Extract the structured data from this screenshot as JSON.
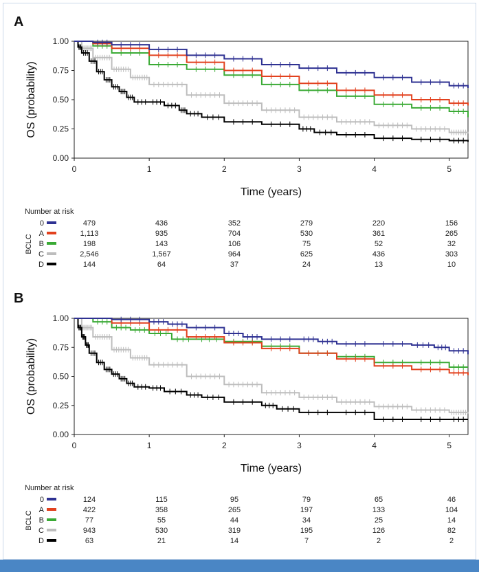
{
  "chart_data": [
    {
      "panel": "A",
      "type": "line",
      "xlabel": "Time (years)",
      "ylabel": "OS (probability)",
      "xlim": [
        0,
        5.25
      ],
      "ylim": [
        0,
        1
      ],
      "x_ticks": [
        "0",
        "1",
        "2",
        "3",
        "4",
        "5"
      ],
      "y_ticks": [
        "0.00",
        "0.25",
        "0.50",
        "0.75",
        "1.00"
      ],
      "colors": {
        "0": "#2e3192",
        "A": "#e2411e",
        "B": "#3aaa35",
        "C": "#bdbdbd",
        "D": "#000000"
      },
      "series": [
        {
          "name": "0",
          "x": [
            0,
            0.25,
            0.5,
            1,
            1.5,
            2,
            2.5,
            3,
            3.5,
            4,
            4.5,
            5,
            5.25
          ],
          "y": [
            1,
            0.99,
            0.97,
            0.93,
            0.88,
            0.85,
            0.8,
            0.77,
            0.73,
            0.69,
            0.65,
            0.62,
            0.6
          ]
        },
        {
          "name": "A",
          "x": [
            0,
            0.25,
            0.5,
            1,
            1.5,
            2,
            2.5,
            3,
            3.5,
            4,
            4.5,
            5,
            5.25
          ],
          "y": [
            1,
            0.98,
            0.94,
            0.88,
            0.82,
            0.75,
            0.7,
            0.64,
            0.58,
            0.54,
            0.5,
            0.47,
            0.45
          ]
        },
        {
          "name": "B",
          "x": [
            0,
            0.25,
            0.5,
            1,
            1.5,
            2,
            2.5,
            3,
            3.5,
            4,
            4.5,
            5,
            5.25
          ],
          "y": [
            1,
            0.96,
            0.9,
            0.8,
            0.76,
            0.71,
            0.63,
            0.58,
            0.53,
            0.46,
            0.43,
            0.4,
            0.35
          ]
        },
        {
          "name": "C",
          "x": [
            0,
            0.1,
            0.25,
            0.5,
            0.75,
            1,
            1.5,
            2,
            2.5,
            3,
            3.5,
            4,
            4.5,
            5,
            5.25
          ],
          "y": [
            1,
            0.94,
            0.86,
            0.76,
            0.69,
            0.63,
            0.54,
            0.47,
            0.41,
            0.35,
            0.31,
            0.28,
            0.25,
            0.22,
            0.21
          ]
        },
        {
          "name": "D",
          "x": [
            0,
            0.05,
            0.1,
            0.2,
            0.3,
            0.4,
            0.5,
            0.6,
            0.7,
            0.8,
            1,
            1.2,
            1.4,
            1.5,
            1.7,
            2,
            2.5,
            3,
            3.2,
            3.5,
            4,
            4.5,
            5,
            5.25
          ],
          "y": [
            1,
            0.95,
            0.9,
            0.83,
            0.74,
            0.67,
            0.61,
            0.57,
            0.52,
            0.48,
            0.48,
            0.45,
            0.41,
            0.38,
            0.35,
            0.31,
            0.29,
            0.25,
            0.22,
            0.2,
            0.17,
            0.16,
            0.15,
            0.14
          ]
        }
      ],
      "risk_table": {
        "title": "Number at risk",
        "group_label": "BCLC",
        "times": [
          0,
          1,
          2,
          3,
          4,
          5
        ],
        "rows": [
          {
            "label": "0",
            "values": [
              "479",
              "436",
              "352",
              "279",
              "220",
              "156"
            ]
          },
          {
            "label": "A",
            "values": [
              "1,113",
              "935",
              "704",
              "530",
              "361",
              "265"
            ]
          },
          {
            "label": "B",
            "values": [
              "198",
              "143",
              "106",
              "75",
              "52",
              "32"
            ]
          },
          {
            "label": "C",
            "values": [
              "2,546",
              "1,567",
              "964",
              "625",
              "436",
              "303"
            ]
          },
          {
            "label": "D",
            "values": [
              "144",
              "64",
              "37",
              "24",
              "13",
              "10"
            ]
          }
        ]
      }
    },
    {
      "panel": "B",
      "type": "line",
      "xlabel": "Time (years)",
      "ylabel": "OS (probability)",
      "xlim": [
        0,
        5.25
      ],
      "ylim": [
        0,
        1
      ],
      "x_ticks": [
        "0",
        "1",
        "2",
        "3",
        "4",
        "5"
      ],
      "y_ticks": [
        "0.00",
        "0.25",
        "0.50",
        "0.75",
        "1.00"
      ],
      "colors": {
        "0": "#2e3192",
        "A": "#e2411e",
        "B": "#3aaa35",
        "C": "#bdbdbd",
        "D": "#000000"
      },
      "series": [
        {
          "name": "0",
          "x": [
            0,
            0.5,
            1,
            1.25,
            1.5,
            2,
            2.25,
            2.5,
            3,
            3.25,
            3.5,
            4,
            4.5,
            4.8,
            5,
            5.25
          ],
          "y": [
            1,
            0.99,
            0.97,
            0.95,
            0.92,
            0.87,
            0.84,
            0.82,
            0.82,
            0.8,
            0.78,
            0.78,
            0.77,
            0.75,
            0.72,
            0.69
          ]
        },
        {
          "name": "A",
          "x": [
            0,
            0.5,
            1,
            1.5,
            2,
            2.5,
            3,
            3.5,
            4,
            4.5,
            5,
            5.25
          ],
          "y": [
            1,
            0.96,
            0.9,
            0.84,
            0.79,
            0.74,
            0.7,
            0.65,
            0.59,
            0.56,
            0.53,
            0.51
          ]
        },
        {
          "name": "B",
          "x": [
            0,
            0.25,
            0.5,
            0.75,
            1,
            1.3,
            1.6,
            2,
            2.5,
            3,
            3.5,
            4,
            4.5,
            5,
            5.25
          ],
          "y": [
            1,
            0.97,
            0.92,
            0.9,
            0.87,
            0.82,
            0.82,
            0.8,
            0.76,
            0.7,
            0.67,
            0.62,
            0.62,
            0.58,
            0.58
          ]
        },
        {
          "name": "C",
          "x": [
            0,
            0.1,
            0.25,
            0.5,
            0.75,
            1,
            1.5,
            2,
            2.5,
            3,
            3.5,
            4,
            4.5,
            5,
            5.25
          ],
          "y": [
            1,
            0.92,
            0.84,
            0.73,
            0.66,
            0.6,
            0.5,
            0.43,
            0.36,
            0.32,
            0.28,
            0.24,
            0.21,
            0.19,
            0.18
          ]
        },
        {
          "name": "D",
          "x": [
            0,
            0.05,
            0.1,
            0.15,
            0.2,
            0.3,
            0.4,
            0.5,
            0.6,
            0.7,
            0.8,
            1,
            1.2,
            1.5,
            1.7,
            2,
            2.5,
            2.7,
            3,
            3.5,
            4,
            4.5,
            5,
            5.25
          ],
          "y": [
            1,
            0.92,
            0.84,
            0.77,
            0.7,
            0.62,
            0.56,
            0.52,
            0.48,
            0.44,
            0.41,
            0.4,
            0.37,
            0.34,
            0.32,
            0.28,
            0.25,
            0.22,
            0.19,
            0.19,
            0.13,
            0.13,
            0.13,
            0.13
          ]
        }
      ],
      "risk_table": {
        "title": "Number at risk",
        "group_label": "BCLC",
        "times": [
          0,
          1,
          2,
          3,
          4,
          5
        ],
        "rows": [
          {
            "label": "0",
            "values": [
              "124",
              "115",
              "95",
              "79",
              "65",
              "46"
            ]
          },
          {
            "label": "A",
            "values": [
              "422",
              "358",
              "265",
              "197",
              "133",
              "104"
            ]
          },
          {
            "label": "B",
            "values": [
              "77",
              "55",
              "44",
              "34",
              "25",
              "14"
            ]
          },
          {
            "label": "C",
            "values": [
              "943",
              "530",
              "319",
              "195",
              "126",
              "82"
            ]
          },
          {
            "label": "D",
            "values": [
              "63",
              "21",
              "14",
              "7",
              "2",
              "2"
            ]
          }
        ]
      }
    }
  ]
}
